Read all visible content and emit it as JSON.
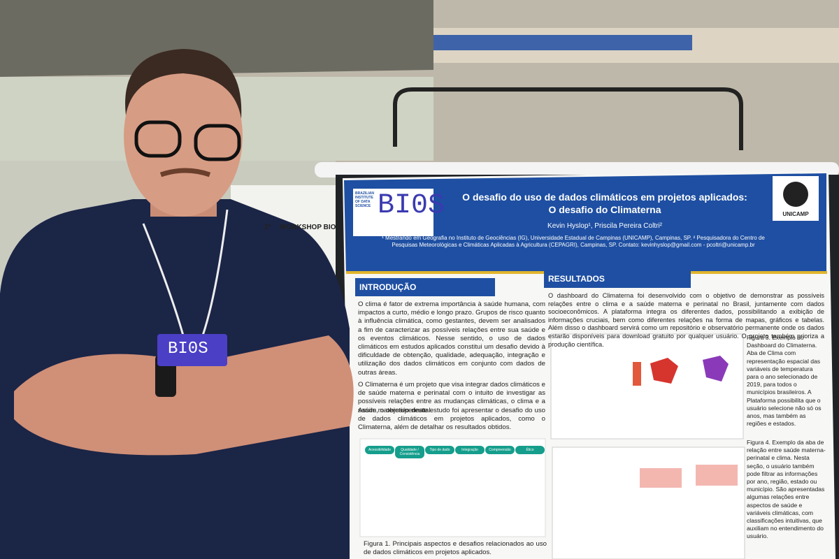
{
  "background_poster": {
    "number": "2º",
    "title": "WORKSHOP BIO"
  },
  "badge": "BI0S",
  "poster": {
    "logo": {
      "caption": "BRAZILIAN INSTITUTE OF DATA SCIENCE",
      "mark": "BI0S"
    },
    "university": "UNICAMP",
    "title_line1": "O desafio do uso de dados climáticos em projetos aplicados:",
    "title_line2": "O desafio do Climaterna",
    "authors": "Kevin Hyslop¹, Priscila Pereira Coltri²",
    "affiliations": "¹ Mestrando em Geografia no Instituto de Geociências (IG), Universidade Estadual de Campinas (UNICAMP), Campinas, SP. ² Pesquisadora do Centro de Pesquisas Meteorológicas e Climáticas Aplicadas à Agricultura (CEPAGRI), Campinas, SP. Contato: kevinhyslop@gmail.com - pcoltri@unicamp.br",
    "introduction": {
      "heading": "INTRODUÇÃO",
      "paragraphs": [
        "O clima é fator de extrema importância à saúde humana, com impactos a curto, médio e longo prazo. Grupos de risco quanto à influência climática, como gestantes, devem ser analisados a fim de caracterizar as possíveis relações entre sua saúde e os eventos climáticos. Nesse sentido, o uso de dados climáticos em estudos aplicados constitui um desafio devido à dificuldade de obtenção, qualidade, adequação, integração e utilização dos dados climáticos em conjunto com dados de outras áreas.",
        "O Climaterna é um projeto que visa integrar dados climáticos e de saúde materna e perinatal com o intuito de investigar as possíveis relações entre as mudanças climáticas, o clima e a saúde materna/perinatal.",
        "Assim, o objetivo deste estudo foi apresentar o desafio do uso de dados climáticos em projetos aplicados, como o Climaterna, além de detalhar os resultados obtidos."
      ],
      "figure_labels": [
        "Acessibilidade",
        "Qualidade / Consistência",
        "Tipo de dado",
        "Integração",
        "Compreensão",
        "Ético"
      ],
      "figure_caption": "Figura 1. Principais aspectos e desafios relacionados ao uso de dados climáticos em projetos aplicados."
    },
    "results": {
      "heading": "RESULTADOS",
      "text": "O dashboard do Climaterna foi desenvolvido com o objetivo de demonstrar as possíveis relações entre o clima e a saúde materna e perinatal no Brasil, juntamente com dados socioeconômicos. A plataforma integra os diferentes dados, possibilitando a exibição de informações cruciais, bem como diferentes relações na forma de mapas, gráficos e tabelas. Além disso o dashboard servirá como um repositório e observatório permanente onde os dados estarão disponíveis para download gratuito por qualquer usuário. O projeto também prioriza a produção científica.",
      "figure3_caption": "Figura 3. Exemplo do Dashboard do Climaterna. Aba de Clima com representação espacial das variáveis de temperatura para o ano selecionado de 2019, para todos o municípios brasileiros. A Plataforma possibilita que o usuário selecione não só os anos, mas também as regiões e estados.",
      "figure4_caption": "Figura 4. Exemplo da aba de relação entre saúde materna-perinatal e clima. Nesta seção, o usuário também pode filtrar as informações por ano, região, estado ou município. São apresentadas algumas relações entre aspectos de saúde e variáveis climáticas, com classificações intuitivas, que auxiliam no entendimento do usuário."
    }
  }
}
